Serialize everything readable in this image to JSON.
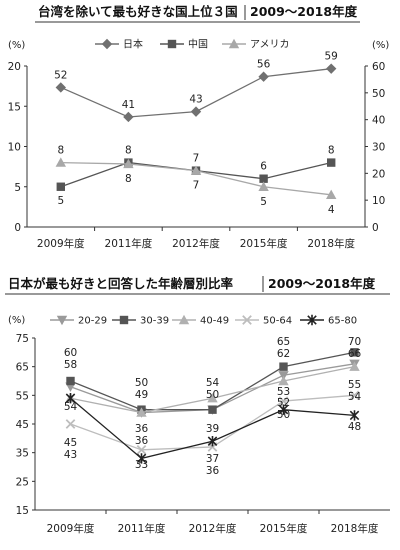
{
  "chart_data": [
    {
      "type": "line",
      "title": "台湾を除いて最も好きな国上位３国",
      "title_years": "2009〜2018年度",
      "y_unit_left": "(%)",
      "y_unit_right": "(%)",
      "categories": [
        "2009年度",
        "2011年度",
        "2012年度",
        "2015年度",
        "2018年度"
      ],
      "y_left": {
        "range": [
          0,
          20
        ],
        "ticks": [
          "0",
          "5",
          "10",
          "15",
          "20"
        ]
      },
      "y_right": {
        "range": [
          0,
          60
        ],
        "ticks": [
          "0",
          "10",
          "20",
          "30",
          "40",
          "50",
          "60"
        ]
      },
      "grid": false,
      "legend_position": "top",
      "series": [
        {
          "name": "日本",
          "axis": "right",
          "marker": "diamond",
          "color": "#707070",
          "values": [
            52,
            41,
            43,
            56,
            59
          ],
          "labels": [
            "52",
            "41",
            "43",
            "56",
            "59"
          ]
        },
        {
          "name": "中国",
          "axis": "right",
          "marker": "square",
          "color": "#555555",
          "values": [
            15,
            24,
            21,
            18,
            24
          ],
          "labels": [
            "5",
            "8",
            "7",
            "6",
            "8"
          ]
        },
        {
          "name": "アメリカ",
          "axis": "right",
          "marker": "triangle",
          "color": "#a8a8a8",
          "values": [
            24,
            23.5,
            21,
            15,
            12
          ],
          "labels": [
            "8",
            "8",
            "7",
            "5",
            "4"
          ]
        }
      ]
    },
    {
      "type": "line",
      "title": "日本が最も好きと回答した年齢層別比率",
      "title_years": "2009〜2018年度",
      "y_unit_left": "(%)",
      "categories": [
        "2009年度",
        "2011年度",
        "2012年度",
        "2015年度",
        "2018年度"
      ],
      "y_left": {
        "range": [
          15,
          75
        ],
        "ticks": [
          "15",
          "25",
          "35",
          "45",
          "55",
          "65",
          "75"
        ]
      },
      "grid": false,
      "legend_position": "top",
      "series": [
        {
          "name": "20-29",
          "marker": "triangle-down",
          "color": "#9a9a9a",
          "values": [
            58,
            49,
            50,
            62,
            66
          ],
          "labels": [
            "58",
            "49",
            "50",
            "62",
            "66"
          ]
        },
        {
          "name": "30-39",
          "marker": "square",
          "color": "#555555",
          "values": [
            60,
            50,
            50,
            65,
            70
          ],
          "labels": [
            "60",
            "50",
            "",
            "65",
            "70"
          ]
        },
        {
          "name": "40-49",
          "marker": "triangle",
          "color": "#b0b0b0",
          "values": [
            54,
            49,
            54,
            60,
            65
          ],
          "labels": [
            "",
            "",
            "54",
            "",
            ""
          ]
        },
        {
          "name": "50-64",
          "marker": "x",
          "color": "#bdbdbd",
          "values": [
            45,
            36,
            37,
            53,
            55
          ],
          "labels": [
            "45",
            "36",
            "37",
            "53",
            "55"
          ]
        },
        {
          "name": "65-80",
          "marker": "star",
          "color": "#222222",
          "values": [
            54,
            33,
            39,
            50,
            48
          ],
          "labels": [
            "54",
            "33",
            "39",
            "50",
            "48"
          ]
        }
      ],
      "extra_labels": [
        {
          "category": "2009年度",
          "text": "43",
          "value": 43
        },
        {
          "category": "2011年度",
          "text": "36",
          "value": 36
        },
        {
          "category": "2012年度",
          "text": "36",
          "value": 36
        },
        {
          "category": "2015年度",
          "text": "52",
          "value": 52
        },
        {
          "category": "2018年度",
          "text": "54",
          "value": 54
        }
      ]
    }
  ]
}
